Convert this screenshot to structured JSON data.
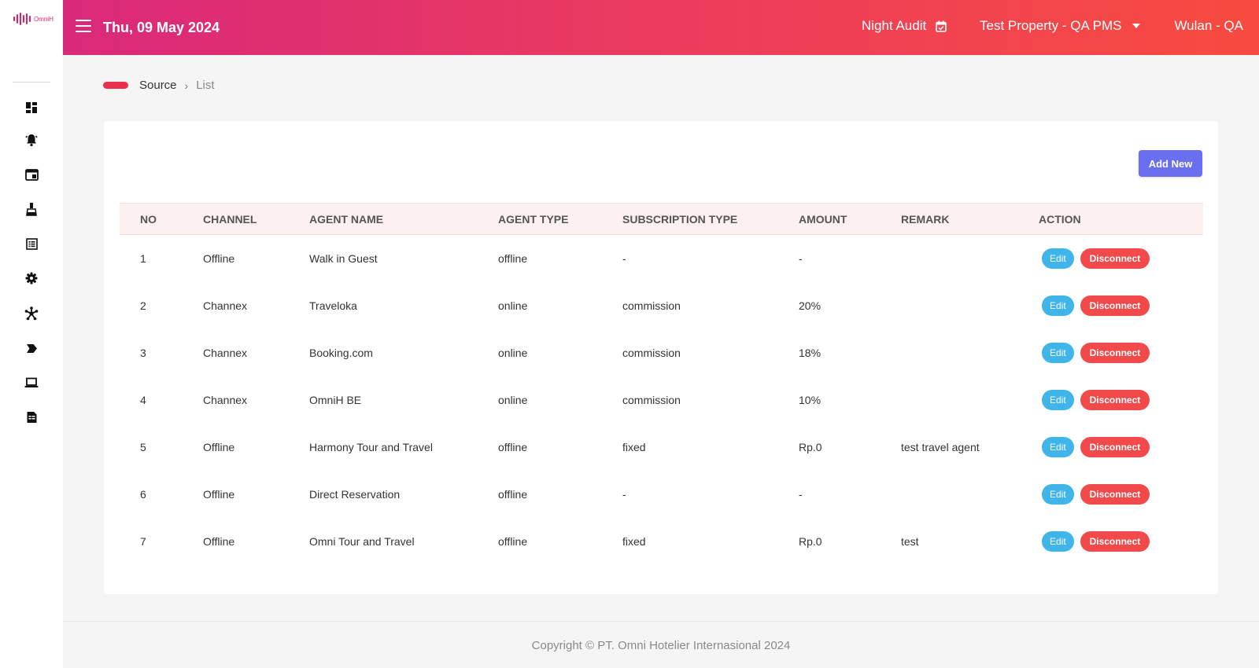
{
  "app": {
    "logo_text": "OmniH",
    "brand_color": "#e0245e"
  },
  "header": {
    "date": "Thu, 09 May 2024",
    "night_audit": "Night Audit",
    "property": "Test Property - QA PMS",
    "user": "Wulan - QA",
    "gradient_start": "#d9297a",
    "gradient_end": "#f74b3f"
  },
  "sidebar": {
    "items": [
      {
        "icon": "dashboard-icon"
      },
      {
        "icon": "bell-icon"
      },
      {
        "icon": "window-icon"
      },
      {
        "icon": "flask-icon"
      },
      {
        "icon": "list-icon"
      },
      {
        "icon": "gear-icon"
      },
      {
        "icon": "network-icon"
      },
      {
        "icon": "tag-icon"
      },
      {
        "icon": "laptop-icon"
      },
      {
        "icon": "report-icon"
      }
    ]
  },
  "breadcrumb": {
    "source": "Source",
    "current": "List"
  },
  "toolbar": {
    "add_new": "Add New"
  },
  "table": {
    "columns": [
      "NO",
      "CHANNEL",
      "AGENT NAME",
      "AGENT TYPE",
      "SUBSCRIPTION TYPE",
      "AMOUNT",
      "REMARK",
      "ACTION"
    ],
    "rows": [
      {
        "no": "1",
        "channel": "Offline",
        "agent_name": "Walk in Guest",
        "agent_type": "offline",
        "subscription_type": "-",
        "amount": "-",
        "remark": ""
      },
      {
        "no": "2",
        "channel": "Channex",
        "agent_name": "Traveloka",
        "agent_type": "online",
        "subscription_type": "commission",
        "amount": "20%",
        "remark": ""
      },
      {
        "no": "3",
        "channel": "Channex",
        "agent_name": "Booking.com",
        "agent_type": "online",
        "subscription_type": "commission",
        "amount": "18%",
        "remark": ""
      },
      {
        "no": "4",
        "channel": "Channex",
        "agent_name": "OmniH BE",
        "agent_type": "online",
        "subscription_type": "commission",
        "amount": "10%",
        "remark": ""
      },
      {
        "no": "5",
        "channel": "Offline",
        "agent_name": "Harmony Tour and Travel",
        "agent_type": "offline",
        "subscription_type": "fixed",
        "amount": "Rp.0",
        "remark": "test travel agent"
      },
      {
        "no": "6",
        "channel": "Offline",
        "agent_name": "Direct Reservation",
        "agent_type": "offline",
        "subscription_type": "-",
        "amount": "-",
        "remark": ""
      },
      {
        "no": "7",
        "channel": "Offline",
        "agent_name": "Omni Tour and Travel",
        "agent_type": "offline",
        "subscription_type": "fixed",
        "amount": "Rp.0",
        "remark": "test"
      }
    ],
    "edit_label": "Edit",
    "disconnect_label": "Disconnect",
    "edit_color": "#3fb5ea",
    "disconnect_color": "#f24a4a"
  },
  "footer": {
    "copyright": "Copyright © PT. Omni Hotelier Internasional 2024"
  }
}
